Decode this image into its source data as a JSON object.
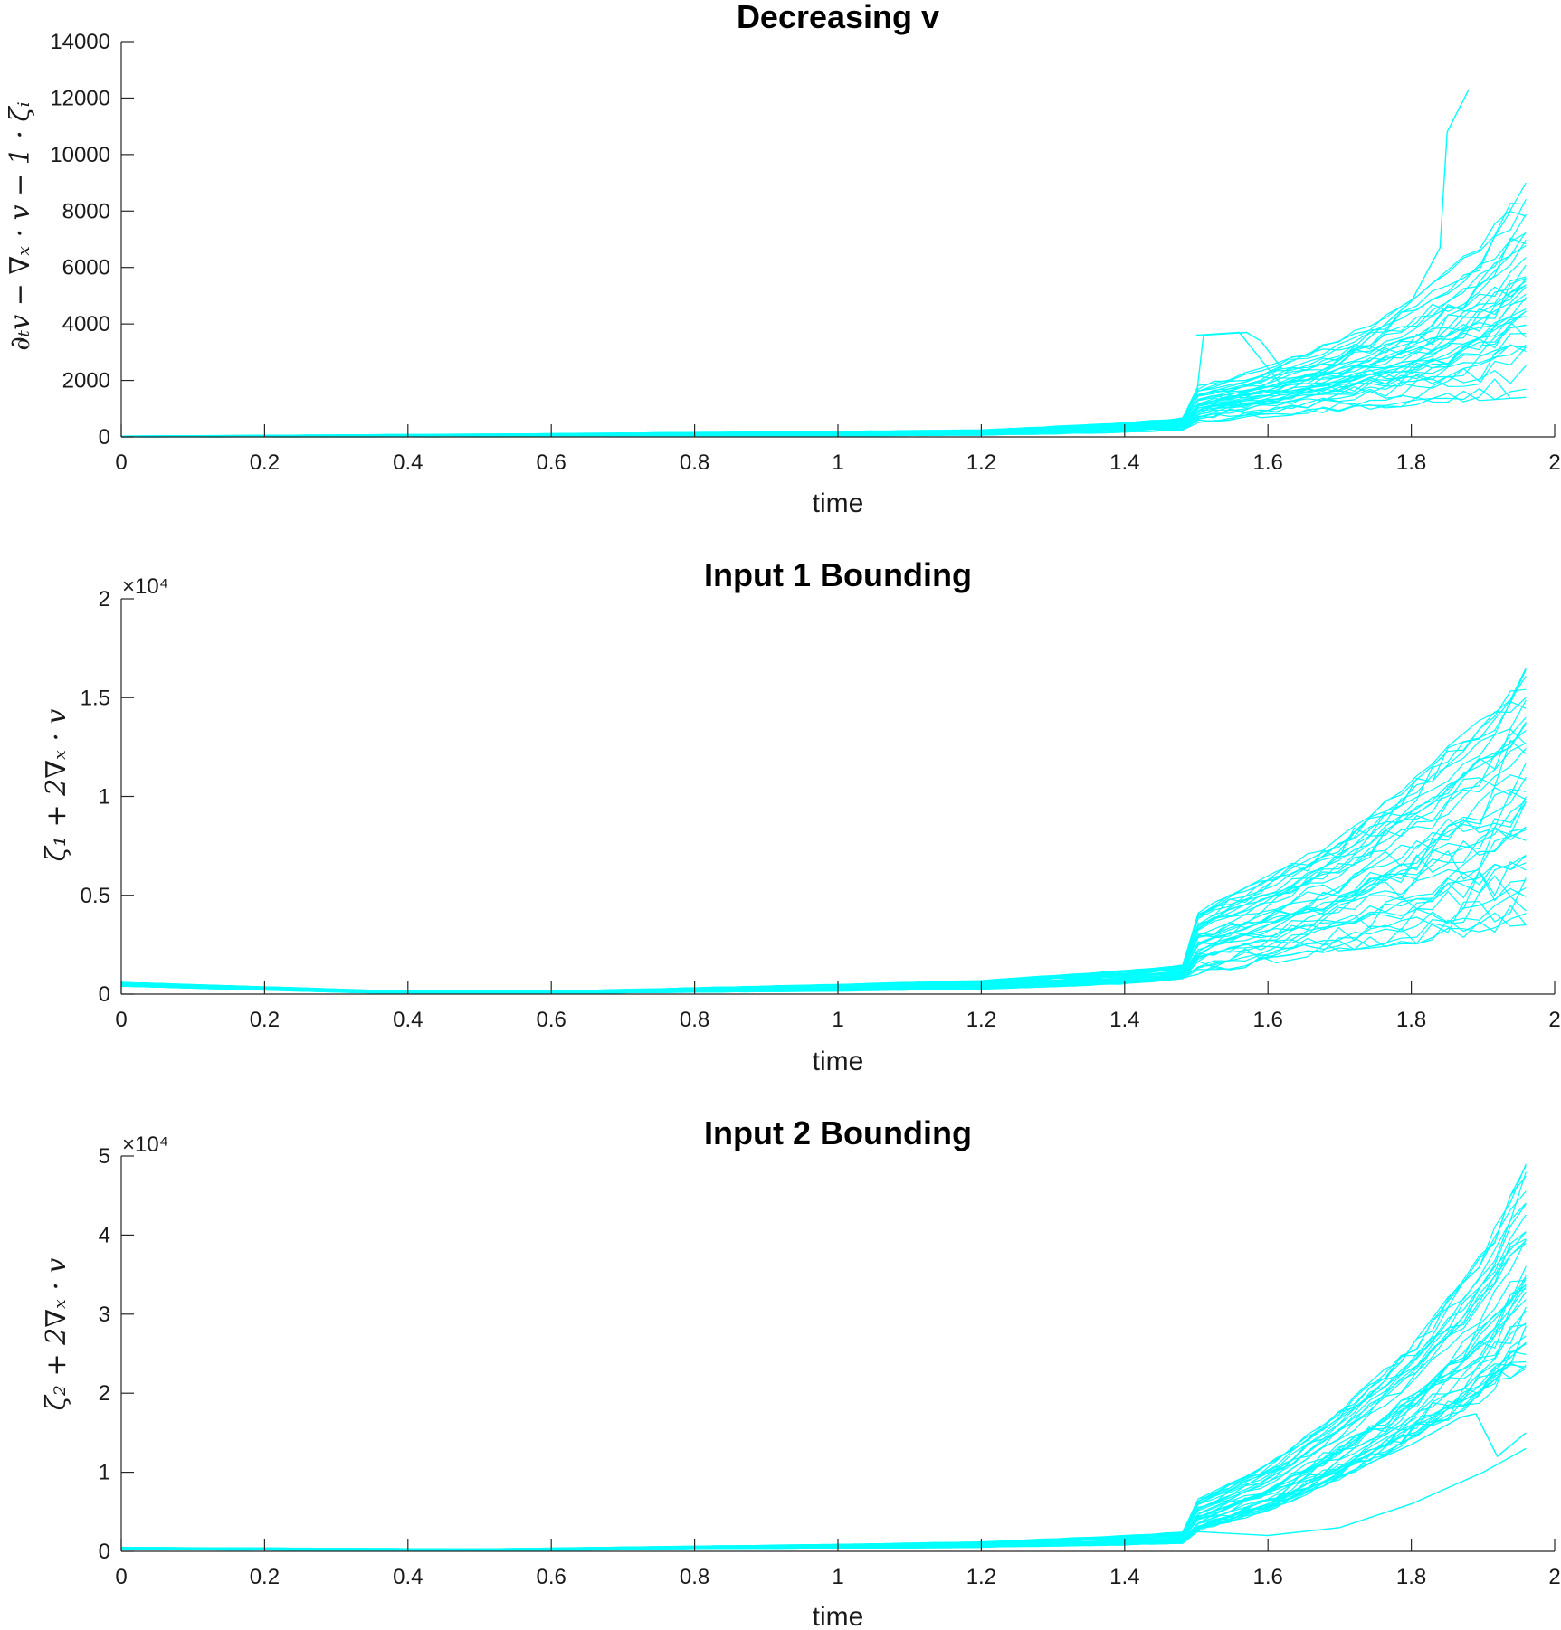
{
  "chart_data": [
    {
      "type": "line",
      "title": "Decreasing v",
      "xlabel": "time",
      "ylabel": "∂ₜv − ∇ₓ · v − 1 · ζᵢ",
      "xlim": [
        0,
        2
      ],
      "ylim": [
        0,
        14000
      ],
      "xticks": [
        0,
        0.2,
        0.4,
        0.6,
        0.8,
        1,
        1.2,
        1.4,
        1.6,
        1.8,
        2
      ],
      "xtick_labels": [
        "0",
        "0.2",
        "0.4",
        "0.6",
        "0.8",
        "1",
        "1.2",
        "1.4",
        "1.6",
        "1.8",
        "2"
      ],
      "yticks": [
        0,
        2000,
        4000,
        6000,
        8000,
        10000,
        12000,
        14000
      ],
      "ytick_labels": [
        "0",
        "2000",
        "4000",
        "6000",
        "8000",
        "10000",
        "12000",
        "14000"
      ],
      "exponent_label": "",
      "line_color": "#00ffff",
      "grid": false,
      "legend": "none",
      "series_count": 40,
      "envelope": {
        "x": [
          0,
          0.5,
          1.0,
          1.2,
          1.4,
          1.49,
          1.5,
          1.6,
          1.7,
          1.8,
          1.9,
          1.96
        ],
        "y_low": [
          0,
          0,
          30,
          60,
          150,
          250,
          500,
          700,
          900,
          1100,
          1300,
          1400
        ],
        "y_high": [
          30,
          100,
          200,
          250,
          500,
          700,
          1800,
          2500,
          3500,
          4800,
          7000,
          9000
        ]
      },
      "outlier": {
        "x": [
          1.5,
          1.56,
          1.62,
          1.7,
          1.8,
          1.84,
          1.85,
          1.88
        ],
        "y": [
          3600,
          3700,
          1800,
          2600,
          4800,
          6700,
          10800,
          12300
        ]
      },
      "bump": {
        "x": [
          1.5,
          1.51,
          1.57,
          1.59,
          1.62
        ],
        "y": [
          1400,
          3600,
          3700,
          3400,
          2400
        ]
      }
    },
    {
      "type": "line",
      "title": "Input 1 Bounding",
      "xlabel": "time",
      "ylabel": "ζ₁ + 2∇ₓ · v",
      "xlim": [
        0,
        2
      ],
      "ylim": [
        0,
        20000
      ],
      "xticks": [
        0,
        0.2,
        0.4,
        0.6,
        0.8,
        1,
        1.2,
        1.4,
        1.6,
        1.8,
        2
      ],
      "xtick_labels": [
        "0",
        "0.2",
        "0.4",
        "0.6",
        "0.8",
        "1",
        "1.2",
        "1.4",
        "1.6",
        "1.8",
        "2"
      ],
      "yticks": [
        0,
        5000,
        10000,
        15000,
        20000
      ],
      "ytick_labels": [
        "0",
        "0.5",
        "1",
        "1.5",
        "2"
      ],
      "exponent_label": "×10⁴",
      "line_color": "#00ffff",
      "grid": false,
      "legend": "none",
      "series_count": 40,
      "envelope": {
        "x": [
          0,
          0.35,
          0.6,
          1.0,
          1.2,
          1.4,
          1.49,
          1.5,
          1.6,
          1.7,
          1.8,
          1.9,
          1.96
        ],
        "y_low": [
          400,
          50,
          30,
          150,
          250,
          500,
          800,
          1000,
          1500,
          2200,
          2500,
          3000,
          3500
        ],
        "y_high": [
          600,
          200,
          150,
          500,
          700,
          1200,
          1500,
          4200,
          6000,
          8000,
          11000,
          14000,
          16500
        ]
      }
    },
    {
      "type": "line",
      "title": "Input 2 Bounding",
      "xlabel": "time",
      "ylabel": "ζ₂ + 2∇ₓ · v",
      "xlim": [
        0,
        2
      ],
      "ylim": [
        0,
        50000
      ],
      "xticks": [
        0,
        0.2,
        0.4,
        0.6,
        0.8,
        1,
        1.2,
        1.4,
        1.6,
        1.8,
        2
      ],
      "xtick_labels": [
        "0",
        "0.2",
        "0.4",
        "0.6",
        "0.8",
        "1",
        "1.2",
        "1.4",
        "1.6",
        "1.8",
        "2"
      ],
      "yticks": [
        0,
        10000,
        20000,
        30000,
        40000,
        50000
      ],
      "ytick_labels": [
        "0",
        "1",
        "2",
        "3",
        "4",
        "5"
      ],
      "exponent_label": "×10⁴",
      "line_color": "#00ffff",
      "grid": false,
      "legend": "none",
      "series_count": 40,
      "envelope": {
        "x": [
          0,
          0.5,
          1.0,
          1.2,
          1.4,
          1.49,
          1.5,
          1.6,
          1.7,
          1.8,
          1.9,
          1.96
        ],
        "y_low": [
          200,
          100,
          300,
          500,
          800,
          1000,
          2500,
          5000,
          9000,
          14000,
          19000,
          23000
        ],
        "y_high": [
          500,
          300,
          900,
          1200,
          2000,
          2500,
          6500,
          11000,
          18000,
          26000,
          38000,
          49000
        ]
      },
      "outlier": {
        "x": [
          1.5,
          1.6,
          1.7,
          1.8,
          1.9,
          1.96
        ],
        "y": [
          2500,
          2000,
          3000,
          6000,
          10000,
          13000
        ]
      },
      "bump": {
        "x": [
          1.5,
          1.6,
          1.7,
          1.8,
          1.87,
          1.89,
          1.92,
          1.96
        ],
        "y": [
          3000,
          6000,
          9500,
          13500,
          17000,
          17400,
          12000,
          15000
        ]
      }
    }
  ]
}
